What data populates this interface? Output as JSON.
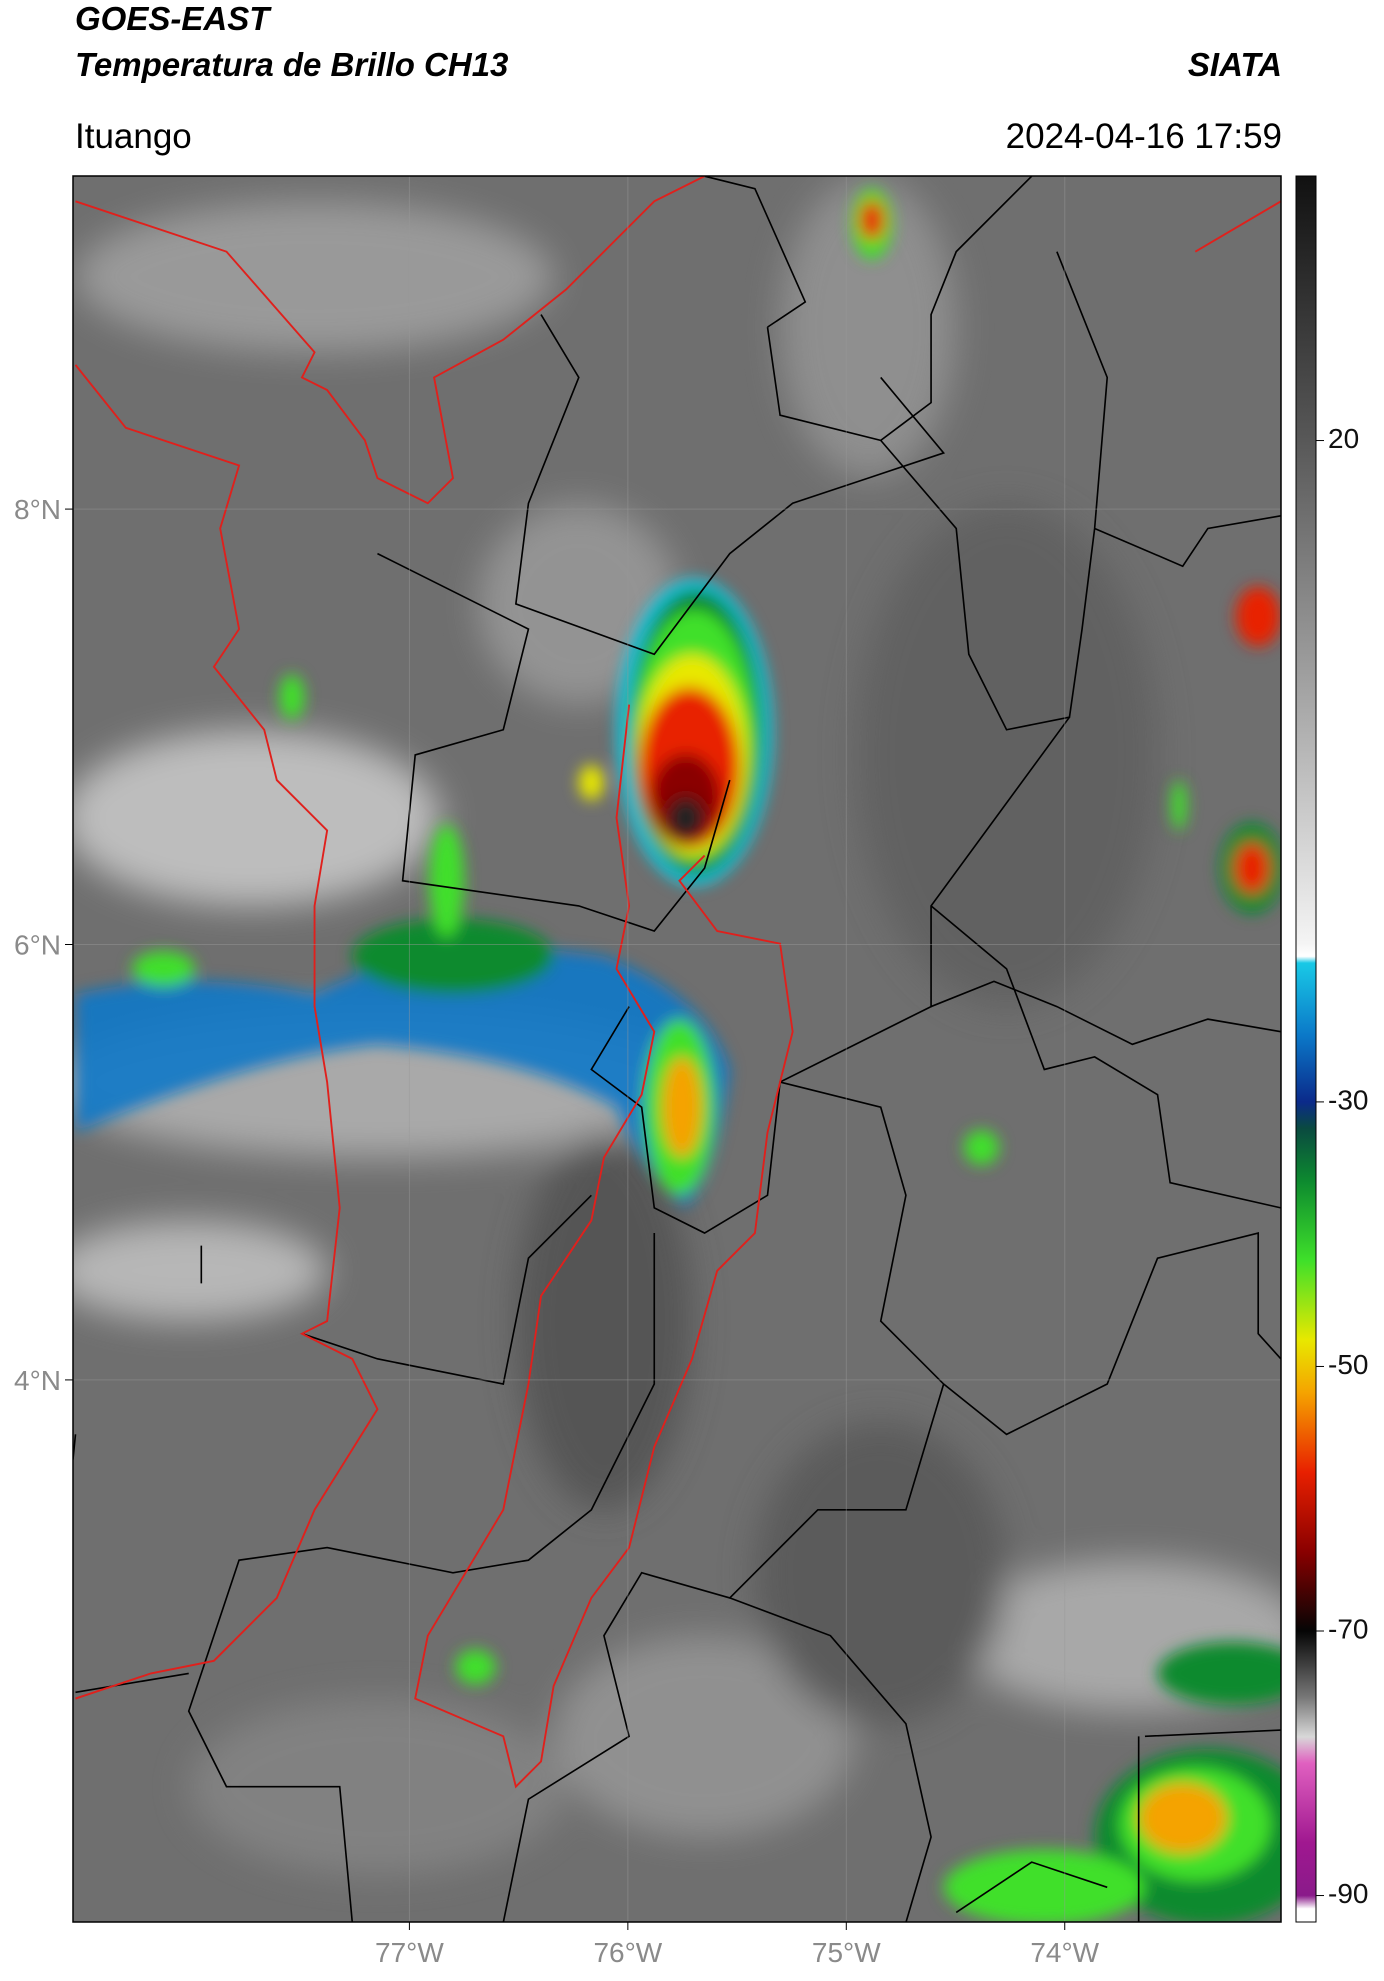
{
  "header": {
    "title": "GOES-EAST",
    "subtitle": "Temperatura de Brillo CH13",
    "agency": "SIATA",
    "location": "Ituango",
    "datetime": "2024-04-16 17:59"
  },
  "map": {
    "xlim": [
      -78.54,
      -73.01
    ],
    "ylim": [
      1.51,
      9.53
    ],
    "xticks": [
      {
        "value": -77,
        "label": "77°W"
      },
      {
        "value": -76,
        "label": "76°W"
      },
      {
        "value": -75,
        "label": "75°W"
      },
      {
        "value": -74,
        "label": "74°W"
      }
    ],
    "yticks": [
      {
        "value": 8,
        "label": "8°N"
      },
      {
        "value": 6,
        "label": "6°N"
      },
      {
        "value": 4,
        "label": "4°N"
      }
    ],
    "grid": true
  },
  "colorbar": {
    "lim": [
      -92,
      40
    ],
    "ticks": [
      20,
      -30,
      -50,
      -70,
      -90
    ],
    "colormap": [
      {
        "value": 40,
        "color": "#111111"
      },
      {
        "value": 20,
        "color": "#585858"
      },
      {
        "value": 0,
        "color": "#a8a8a8"
      },
      {
        "value": -18,
        "color": "#f4f4f4"
      },
      {
        "value": -19,
        "color": "#ffffff"
      },
      {
        "value": -19.5,
        "color": "#19c9e6"
      },
      {
        "value": -25,
        "color": "#0b78c8"
      },
      {
        "value": -30,
        "color": "#0b2a8a"
      },
      {
        "value": -32,
        "color": "#0a4a40"
      },
      {
        "value": -36,
        "color": "#0d8a2f"
      },
      {
        "value": -42,
        "color": "#3fe02a"
      },
      {
        "value": -48,
        "color": "#e8e800"
      },
      {
        "value": -52,
        "color": "#f5a300"
      },
      {
        "value": -58,
        "color": "#e82000"
      },
      {
        "value": -64,
        "color": "#8a0000"
      },
      {
        "value": -70,
        "color": "#050505"
      },
      {
        "value": -75,
        "color": "#777777"
      },
      {
        "value": -78,
        "color": "#d8d8d8"
      },
      {
        "value": -80,
        "color": "#e060c0"
      },
      {
        "value": -86,
        "color": "#a01890"
      },
      {
        "value": -90,
        "color": "#8a1a8a"
      },
      {
        "value": -91,
        "color": "#ffffff"
      },
      {
        "value": -92,
        "color": "#ffffff"
      }
    ]
  }
}
